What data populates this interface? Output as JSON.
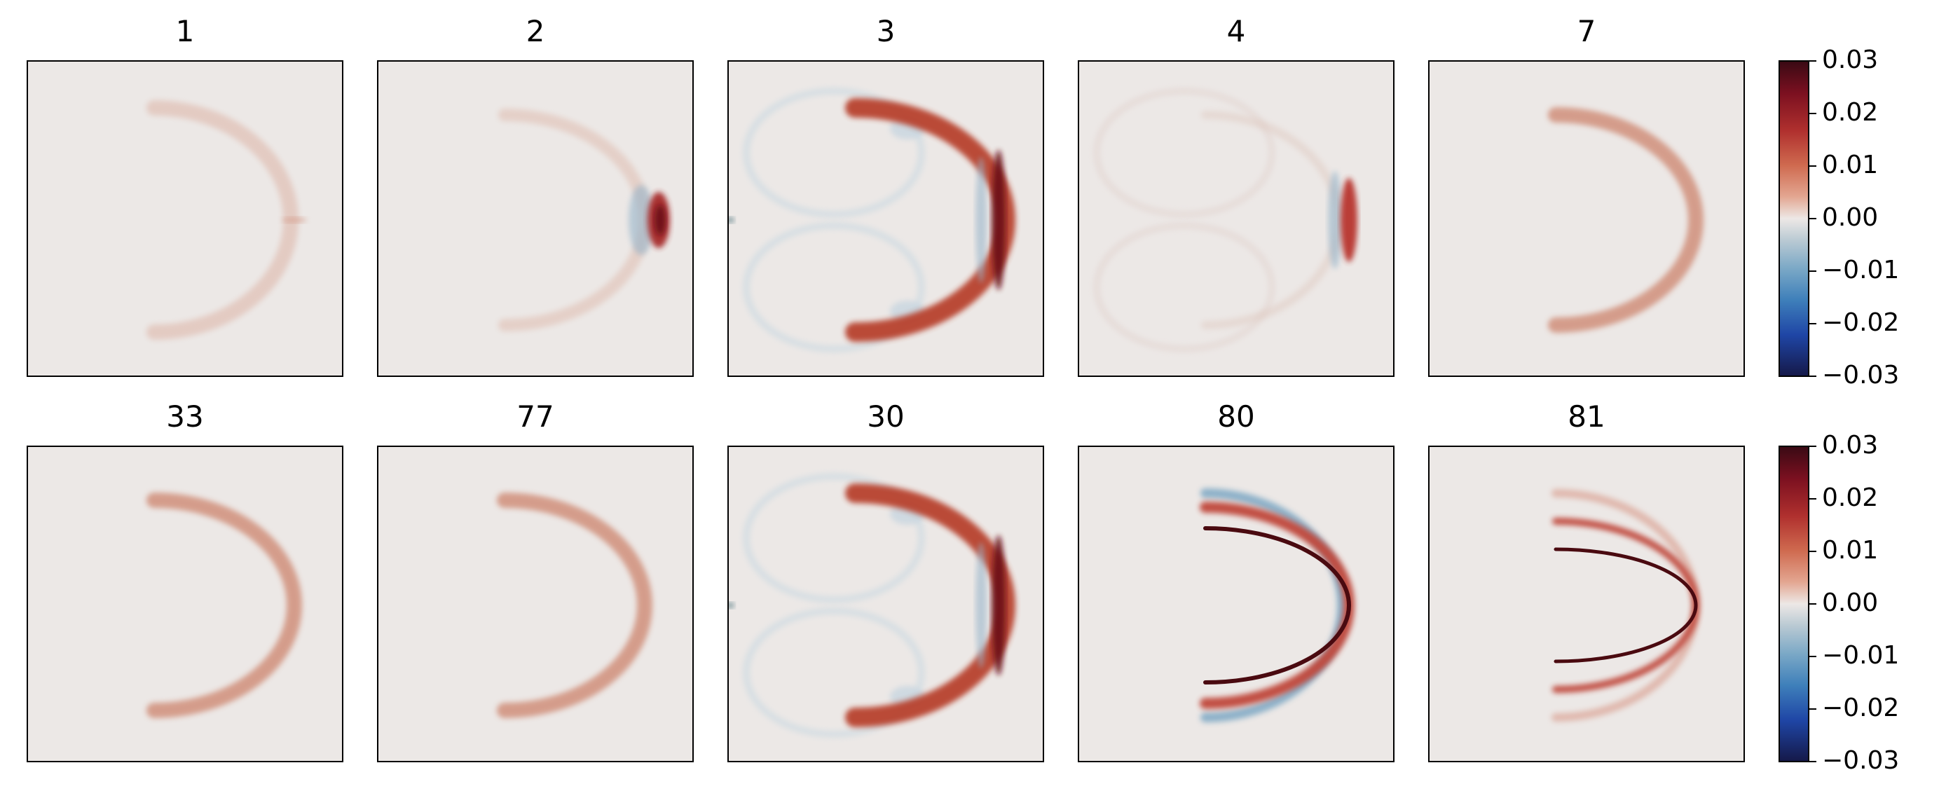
{
  "chart_data": [
    {
      "type": "heatmap",
      "panels": [
        {
          "title": "1",
          "pattern": "faint"
        },
        {
          "title": "2",
          "pattern": "dipole"
        },
        {
          "title": "3",
          "pattern": "strong_vortex"
        },
        {
          "title": "4",
          "pattern": "dipole_weak"
        },
        {
          "title": "7",
          "pattern": "arc"
        }
      ],
      "colorbar": {
        "ticks": [
          "0.03",
          "0.02",
          "0.01",
          "0.00",
          "−0.01",
          "−0.02",
          "−0.03"
        ],
        "range": [
          -0.03,
          0.03
        ],
        "colormap": "diverging red-white-blue"
      }
    },
    {
      "type": "heatmap",
      "panels": [
        {
          "title": "33",
          "pattern": "arc"
        },
        {
          "title": "77",
          "pattern": "arc"
        },
        {
          "title": "30",
          "pattern": "strong_vortex"
        },
        {
          "title": "80",
          "pattern": "sharp_arc"
        },
        {
          "title": "81",
          "pattern": "sharp_arc_weak"
        }
      ],
      "colorbar": {
        "ticks": [
          "0.03",
          "0.02",
          "0.01",
          "0.00",
          "−0.01",
          "−0.02",
          "−0.03"
        ],
        "range": [
          -0.03,
          0.03
        ],
        "colormap": "diverging red-white-blue"
      }
    }
  ]
}
